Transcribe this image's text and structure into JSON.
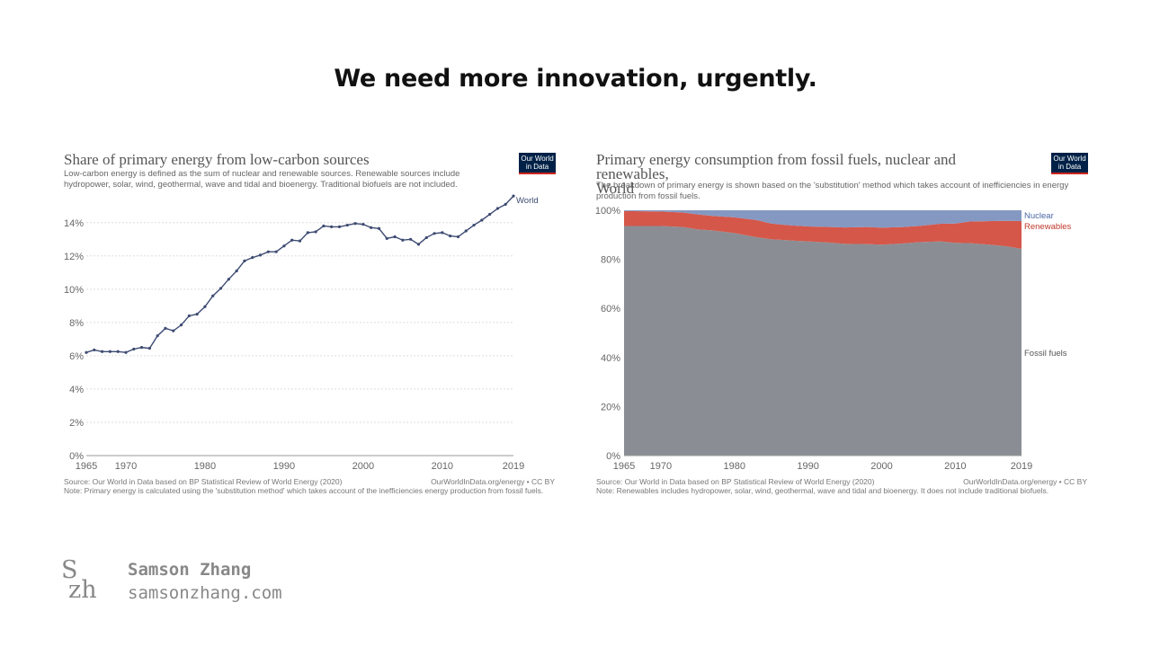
{
  "slide": {
    "title": "We need more innovation, urgently.",
    "author_logo": [
      "S",
      "zh"
    ],
    "author_name": "Samson Zhang",
    "author_site": "samsonzhang.com"
  },
  "colors": {
    "line": "#3d4b72",
    "fossil": "#8a8e94",
    "renewables": "#d5574a",
    "nuclear": "#8598c2",
    "logo_bg": "#002147",
    "logo_bar": "#ce261e"
  },
  "left": {
    "title": "Share of primary energy from low-carbon sources",
    "subtitle_lines": [
      "Low-carbon energy is defined as the sum of nuclear and renewable sources. Renewable sources include",
      "hydropower, solar, wind, geothermal, wave and tidal and bioenergy. Traditional biofuels are not included."
    ],
    "logo_lines": [
      "Our World",
      "in Data"
    ],
    "source": "Source: Our World in Data based on BP Statistical Review of World Energy (2020)",
    "note": "Note: Primary energy is calculated using the 'substitution method' which takes account of the inefficiencies energy production from fossil fuels.",
    "credit": "OurWorldInData.org/energy • CC BY"
  },
  "right": {
    "title_lines": [
      "Primary energy consumption from fossil fuels, nuclear and renewables,",
      "World"
    ],
    "subtitle_lines": [
      "The breakdown of primary energy is shown based on the 'substitution' method which takes account of inefficiencies in energy",
      "production from fossil fuels."
    ],
    "logo_lines": [
      "Our World",
      "in Data"
    ],
    "source": "Source: Our World in Data based on BP Statistical Review of World Energy (2020)",
    "note": "Note: Renewables includes hydropower, solar, wind, geothermal, wave and tidal and bioenergy. It does not include traditional biofuels.",
    "credit": "OurWorldInData.org/energy • CC BY"
  },
  "chart_data": [
    {
      "type": "line",
      "title": "Share of primary energy from low-carbon sources",
      "x_ticks": [
        1965,
        1970,
        1980,
        1990,
        2000,
        2010,
        2019
      ],
      "y_ticks": [
        "0%",
        "2%",
        "4%",
        "6%",
        "8%",
        "10%",
        "12%",
        "14%"
      ],
      "y_tick_values": [
        0,
        2,
        4,
        6,
        8,
        10,
        12,
        14
      ],
      "xlim": [
        1965,
        2019
      ],
      "ylim": [
        0,
        15.5
      ],
      "grid": true,
      "series": [
        {
          "name": "World",
          "x": [
            1965,
            1966,
            1967,
            1968,
            1969,
            1970,
            1971,
            1972,
            1973,
            1974,
            1975,
            1976,
            1977,
            1978,
            1979,
            1980,
            1981,
            1982,
            1983,
            1984,
            1985,
            1986,
            1987,
            1988,
            1989,
            1990,
            1991,
            1992,
            1993,
            1994,
            1995,
            1996,
            1997,
            1998,
            1999,
            2000,
            2001,
            2002,
            2003,
            2004,
            2005,
            2006,
            2007,
            2008,
            2009,
            2010,
            2011,
            2012,
            2013,
            2014,
            2015,
            2016,
            2017,
            2018,
            2019
          ],
          "values": [
            6.2,
            6.35,
            6.25,
            6.25,
            6.25,
            6.2,
            6.4,
            6.5,
            6.45,
            7.2,
            7.65,
            7.5,
            7.85,
            8.4,
            8.5,
            8.95,
            9.6,
            10.05,
            10.6,
            11.1,
            11.7,
            11.9,
            12.05,
            12.25,
            12.25,
            12.6,
            12.95,
            12.9,
            13.4,
            13.45,
            13.8,
            13.75,
            13.75,
            13.85,
            13.95,
            13.9,
            13.7,
            13.65,
            13.05,
            13.15,
            12.95,
            13.0,
            12.7,
            13.1,
            13.35,
            13.4,
            13.2,
            13.15,
            13.5,
            13.85,
            14.15,
            14.5,
            14.85,
            15.1,
            15.6
          ]
        }
      ]
    },
    {
      "type": "area",
      "title": "Primary energy consumption from fossil fuels, nuclear and renewables, World",
      "x_ticks": [
        1965,
        1970,
        1980,
        1990,
        2000,
        2010,
        2019
      ],
      "y_ticks": [
        "0%",
        "20%",
        "40%",
        "60%",
        "80%",
        "100%"
      ],
      "y_tick_values": [
        0,
        20,
        40,
        60,
        80,
        100
      ],
      "xlim": [
        1965,
        2019
      ],
      "ylim": [
        0,
        100
      ],
      "stacked": true,
      "x": [
        1965,
        1970,
        1973,
        1975,
        1977,
        1980,
        1983,
        1985,
        1987,
        1990,
        1993,
        1995,
        1998,
        2000,
        2003,
        2005,
        2008,
        2010,
        2012,
        2015,
        2017,
        2019
      ],
      "series": [
        {
          "name": "Fossil fuels",
          "values": [
            93.6,
            93.6,
            93.2,
            92.2,
            91.8,
            90.7,
            89.0,
            88.2,
            87.8,
            87.3,
            86.8,
            86.3,
            86.2,
            86.0,
            86.5,
            87.0,
            87.3,
            86.7,
            86.6,
            85.9,
            85.3,
            84.3
          ]
        },
        {
          "name": "Renewables",
          "values": [
            6.1,
            5.9,
            5.9,
            6.1,
            5.9,
            6.4,
            7.0,
            6.4,
            6.2,
            6.1,
            6.4,
            6.7,
            7.0,
            6.9,
            6.7,
            6.6,
            7.2,
            7.9,
            8.8,
            9.7,
            10.4,
            11.3
          ]
        },
        {
          "name": "Nuclear",
          "values": [
            0.3,
            0.5,
            0.9,
            1.7,
            2.3,
            2.9,
            4.0,
            5.4,
            6.0,
            6.6,
            6.8,
            7.0,
            6.8,
            7.1,
            6.8,
            6.4,
            5.5,
            5.4,
            4.6,
            4.4,
            4.3,
            4.4
          ]
        }
      ]
    }
  ]
}
